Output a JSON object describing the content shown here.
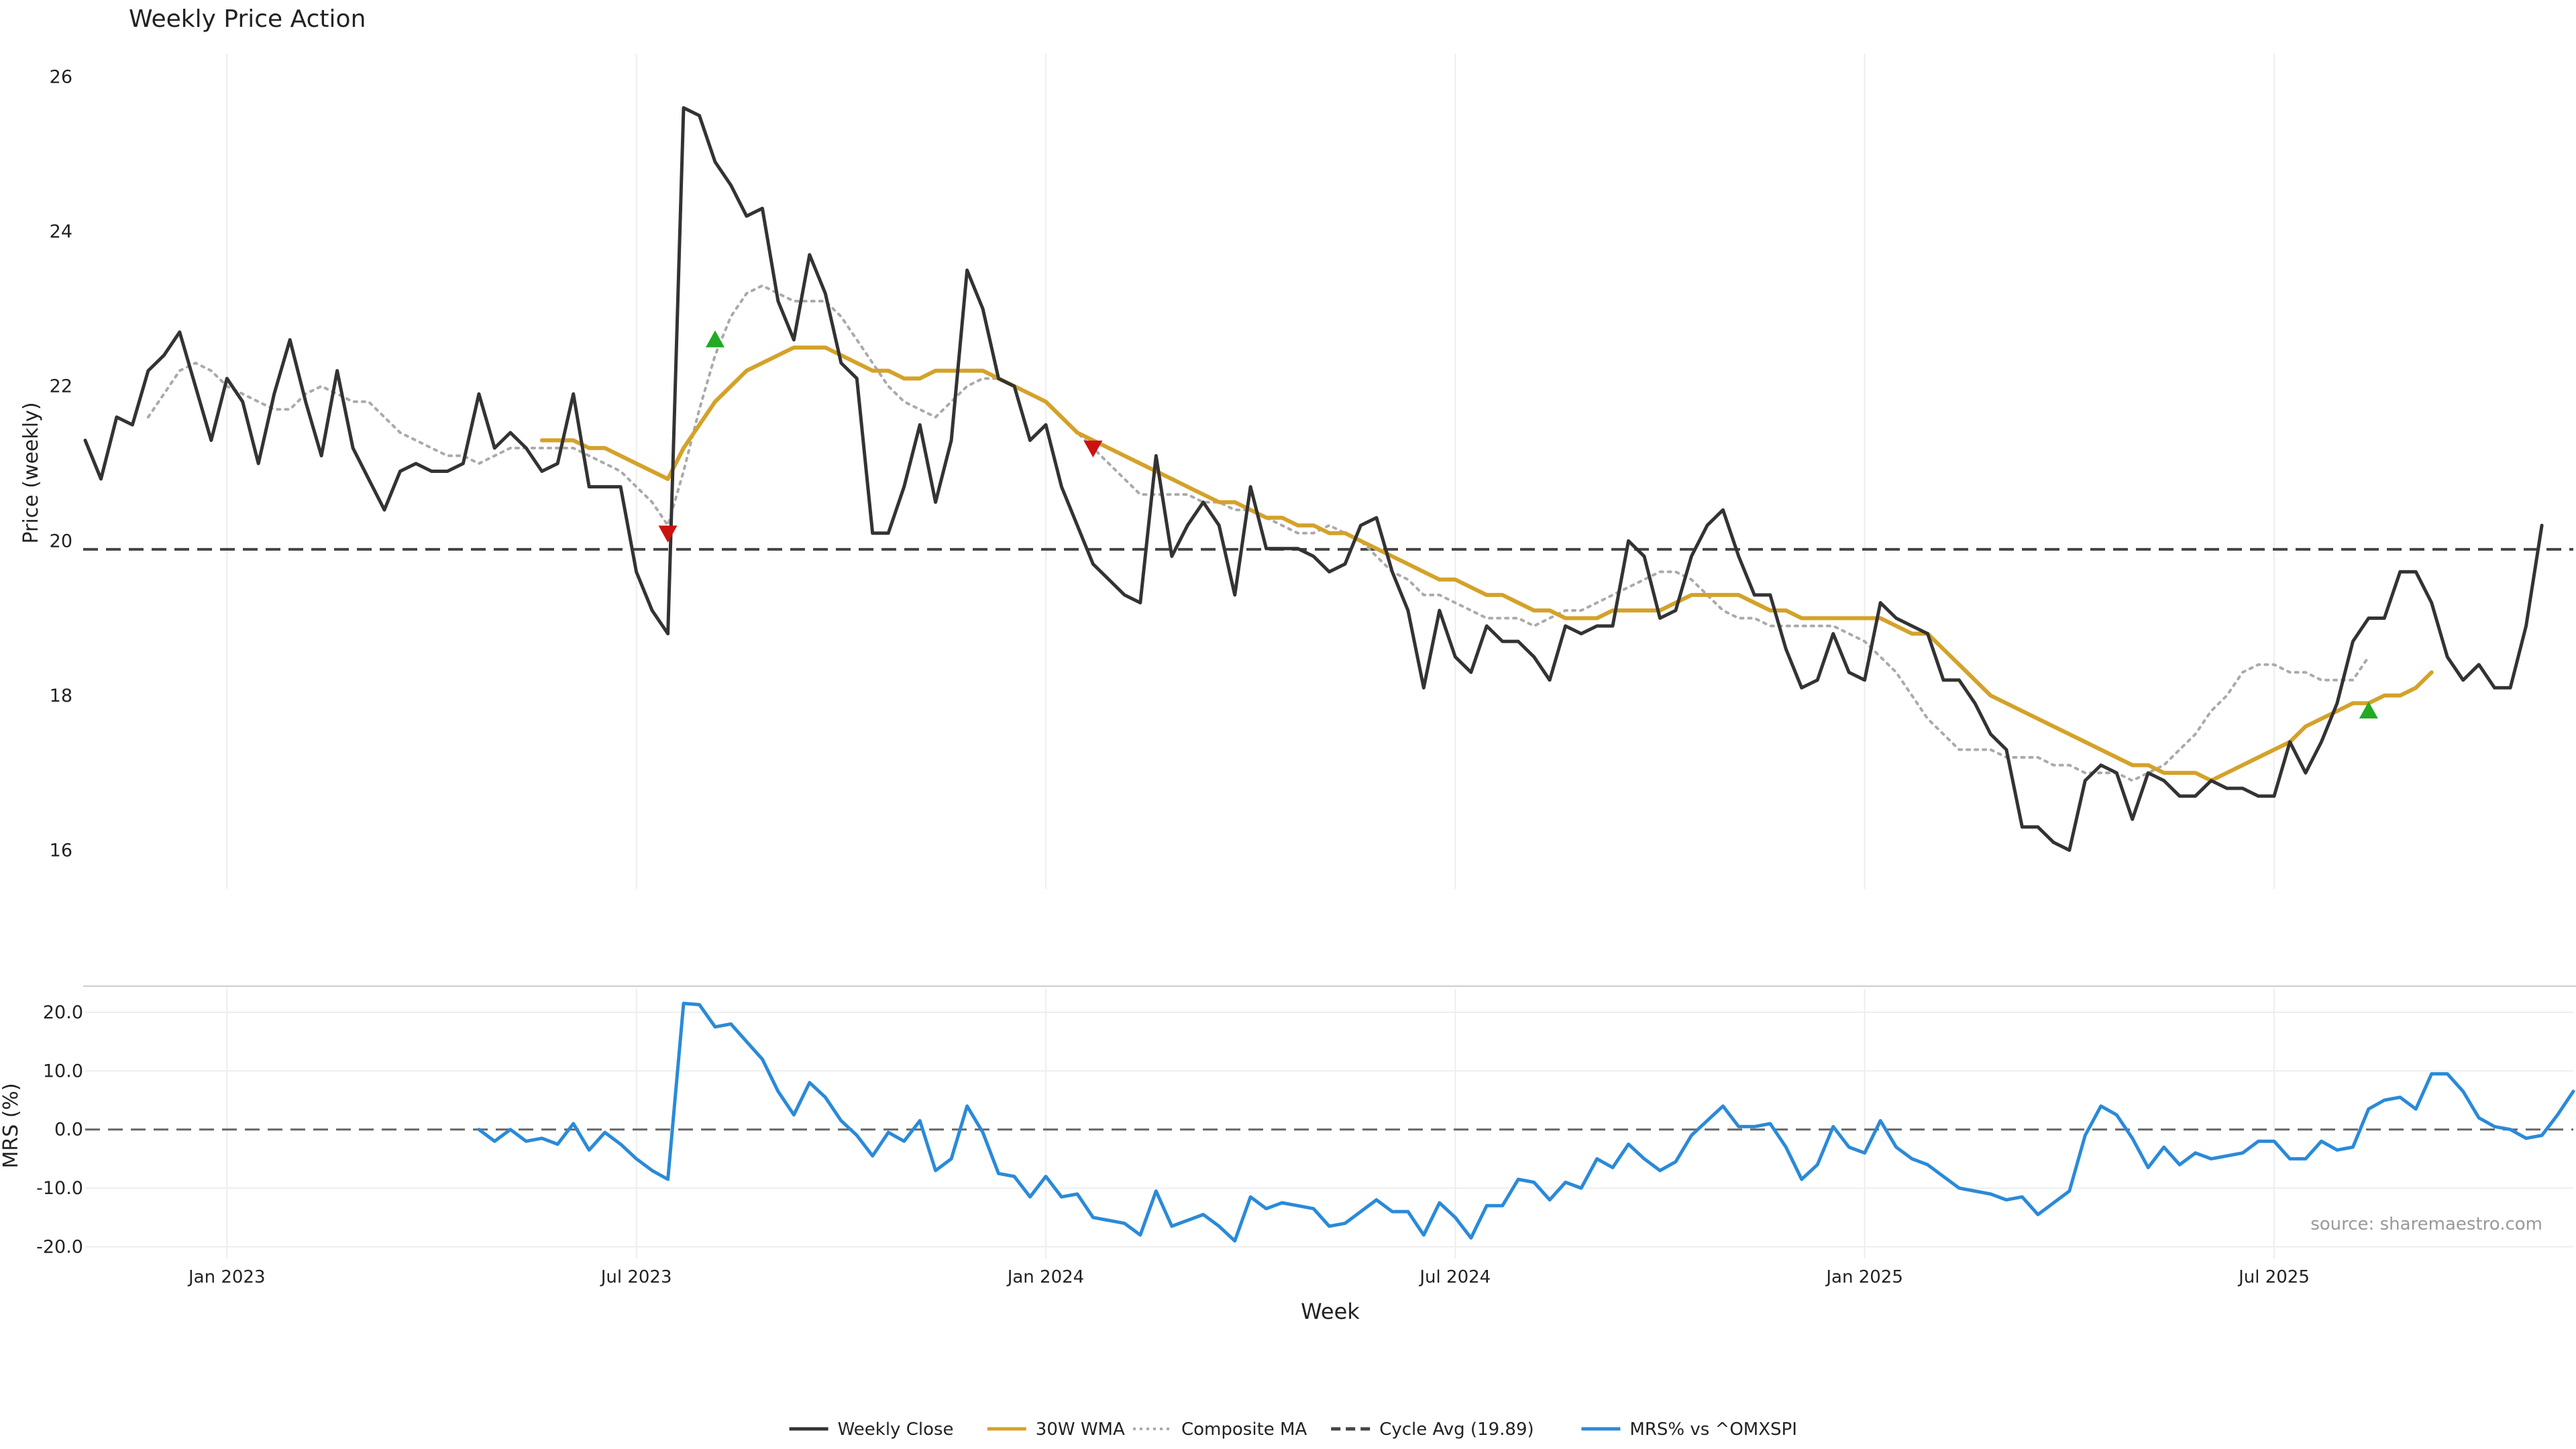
{
  "chart_data": [
    {
      "type": "line",
      "title": "Weekly Price Action",
      "xlabel": "",
      "ylabel": "Price (weekly)",
      "ylim": [
        15.5,
        26.3
      ],
      "yticks": [
        16,
        18,
        20,
        22,
        24,
        26
      ],
      "x_start_week": 0,
      "week_count": 159,
      "x_ticks": [
        {
          "label": "Jan 2023",
          "week": 9
        },
        {
          "label": "Jul 2023",
          "week": 35
        },
        {
          "label": "Jan 2024",
          "week": 61
        },
        {
          "label": "Jul 2024",
          "week": 87
        },
        {
          "label": "Jan 2025",
          "week": 113
        },
        {
          "label": "Jul 2025",
          "week": 139
        }
      ],
      "series": [
        {
          "name": "Weekly Close",
          "color": "#333333",
          "style": "solid",
          "start_week": 0,
          "values": [
            21.3,
            20.8,
            21.6,
            21.5,
            22.2,
            22.4,
            22.7,
            22.0,
            21.3,
            22.1,
            21.8,
            21.0,
            21.9,
            22.6,
            21.8,
            21.1,
            22.2,
            21.2,
            20.8,
            20.4,
            20.9,
            21.0,
            20.9,
            20.9,
            21.0,
            21.9,
            21.2,
            21.4,
            21.2,
            20.9,
            21.0,
            21.9,
            20.7,
            20.7,
            20.7,
            19.6,
            19.1,
            18.8,
            25.6,
            25.5,
            24.9,
            24.6,
            24.2,
            24.3,
            23.1,
            22.6,
            23.7,
            23.2,
            22.3,
            22.1,
            20.1,
            20.1,
            20.7,
            21.5,
            20.5,
            21.3,
            23.5,
            23.0,
            22.1,
            22.0,
            21.3,
            21.5,
            20.7,
            20.2,
            19.7,
            19.5,
            19.3,
            19.2,
            21.1,
            19.8,
            20.2,
            20.5,
            20.2,
            19.3,
            20.7,
            19.9,
            19.9,
            19.9,
            19.8,
            19.6,
            19.7,
            20.2,
            20.3,
            19.6,
            19.1,
            18.1,
            19.1,
            18.5,
            18.3,
            18.9,
            18.7,
            18.7,
            18.5,
            18.2,
            18.9,
            18.8,
            18.9,
            18.9,
            20.0,
            19.8,
            19.0,
            19.1,
            19.8,
            20.2,
            20.4,
            19.8,
            19.3,
            19.3,
            18.6,
            18.1,
            18.2,
            18.8,
            18.3,
            18.2,
            19.2,
            19.0,
            18.9,
            18.8,
            18.2,
            18.2,
            17.9,
            17.5,
            17.3,
            16.3,
            16.3,
            16.1,
            16.0,
            16.9,
            17.1,
            17.0,
            16.4,
            17.0,
            16.9,
            16.7,
            16.7,
            16.9,
            16.8,
            16.8,
            16.7,
            16.7,
            17.4,
            17.0,
            17.4,
            17.9,
            18.7,
            19.0,
            19.0,
            19.6,
            19.6,
            19.2,
            18.5,
            18.2,
            18.4,
            18.1,
            18.1,
            18.9,
            20.2
          ]
        },
        {
          "name": "30W WMA",
          "color": "#d4a22a",
          "style": "solid",
          "start_week": 29,
          "values": [
            21.3,
            21.3,
            21.3,
            21.2,
            21.2,
            21.1,
            21.0,
            20.9,
            20.8,
            21.2,
            21.5,
            21.8,
            22.0,
            22.2,
            22.3,
            22.4,
            22.5,
            22.5,
            22.5,
            22.4,
            22.3,
            22.2,
            22.2,
            22.1,
            22.1,
            22.2,
            22.2,
            22.2,
            22.2,
            22.1,
            22.0,
            21.9,
            21.8,
            21.6,
            21.4,
            21.3,
            21.2,
            21.1,
            21.0,
            20.9,
            20.8,
            20.7,
            20.6,
            20.5,
            20.5,
            20.4,
            20.3,
            20.3,
            20.2,
            20.2,
            20.1,
            20.1,
            20.0,
            19.9,
            19.8,
            19.7,
            19.6,
            19.5,
            19.5,
            19.4,
            19.3,
            19.3,
            19.2,
            19.1,
            19.1,
            19.0,
            19.0,
            19.0,
            19.1,
            19.1,
            19.1,
            19.1,
            19.2,
            19.3,
            19.3,
            19.3,
            19.3,
            19.2,
            19.1,
            19.1,
            19.0,
            19.0,
            19.0,
            19.0,
            19.0,
            19.0,
            18.9,
            18.8,
            18.8,
            18.6,
            18.4,
            18.2,
            18.0,
            17.9,
            17.8,
            17.7,
            17.6,
            17.5,
            17.4,
            17.3,
            17.2,
            17.1,
            17.1,
            17.0,
            17.0,
            17.0,
            16.9,
            17.0,
            17.1,
            17.2,
            17.3,
            17.4,
            17.6,
            17.7,
            17.8,
            17.9,
            17.9,
            18.0,
            18.0,
            18.1,
            18.3
          ]
        },
        {
          "name": "Composite MA",
          "color": "#aaaaaa",
          "style": "dotted",
          "start_week": 4,
          "values": [
            21.6,
            21.9,
            22.2,
            22.3,
            22.2,
            22.0,
            21.9,
            21.8,
            21.7,
            21.7,
            21.9,
            22.0,
            21.9,
            21.8,
            21.8,
            21.6,
            21.4,
            21.3,
            21.2,
            21.1,
            21.1,
            21.0,
            21.1,
            21.2,
            21.2,
            21.2,
            21.2,
            21.2,
            21.1,
            21.0,
            20.9,
            20.7,
            20.5,
            20.2,
            20.9,
            21.7,
            22.4,
            22.9,
            23.2,
            23.3,
            23.2,
            23.1,
            23.1,
            23.1,
            22.9,
            22.6,
            22.3,
            22.0,
            21.8,
            21.7,
            21.6,
            21.8,
            22.0,
            22.1,
            22.1,
            22.0,
            21.9,
            21.8,
            21.6,
            21.4,
            21.2,
            21.0,
            20.8,
            20.6,
            20.6,
            20.6,
            20.6,
            20.5,
            20.5,
            20.4,
            20.4,
            20.3,
            20.2,
            20.1,
            20.1,
            20.2,
            20.1,
            20.0,
            19.8,
            19.6,
            19.5,
            19.3,
            19.3,
            19.2,
            19.1,
            19.0,
            19.0,
            19.0,
            18.9,
            19.0,
            19.1,
            19.1,
            19.2,
            19.3,
            19.4,
            19.5,
            19.6,
            19.6,
            19.5,
            19.3,
            19.1,
            19.0,
            19.0,
            18.9,
            18.9,
            18.9,
            18.9,
            18.9,
            18.8,
            18.7,
            18.5,
            18.3,
            18.0,
            17.7,
            17.5,
            17.3,
            17.3,
            17.3,
            17.2,
            17.2,
            17.2,
            17.1,
            17.1,
            17.0,
            17.0,
            17.0,
            16.9,
            17.0,
            17.1,
            17.3,
            17.5,
            17.8,
            18.0,
            18.3,
            18.4,
            18.4,
            18.3,
            18.3,
            18.2,
            18.2,
            18.2,
            18.5
          ]
        }
      ],
      "reference_lines": [
        {
          "name": "Cycle Avg (19.89)",
          "value": 19.89,
          "color": "#444444",
          "style": "dashed"
        }
      ],
      "markers": [
        {
          "type": "sell",
          "week": 37,
          "value": 20.1,
          "color": "#cc1111"
        },
        {
          "type": "buy",
          "week": 40,
          "value": 22.6,
          "color": "#22aa22"
        },
        {
          "type": "sell",
          "week": 64,
          "value": 21.2,
          "color": "#cc1111"
        },
        {
          "type": "buy",
          "week": 145,
          "value": 17.8,
          "color": "#22aa22"
        }
      ]
    },
    {
      "type": "line",
      "title": "",
      "xlabel": "Week",
      "ylabel": "MRS (%)",
      "ylim": [
        -22,
        24
      ],
      "yticks": [
        -20,
        -10,
        0,
        10,
        20
      ],
      "ytick_labels": [
        "-20.0",
        "-10.0",
        "0.0",
        "10.0",
        "20.0"
      ],
      "annotation": "source: sharemaestro.com",
      "series": [
        {
          "name": "MRS% vs ^OMXSPI",
          "color": "#2a8ad8",
          "style": "solid",
          "start_week": 25,
          "values": [
            0.0,
            -2.0,
            0.0,
            -2.0,
            -1.5,
            -2.5,
            1.0,
            -3.5,
            -0.5,
            -2.5,
            -5.0,
            -7.0,
            -8.5,
            21.5,
            21.3,
            17.5,
            18.0,
            15.0,
            12.0,
            6.5,
            2.5,
            8.0,
            5.5,
            1.5,
            -1.0,
            -4.5,
            -0.5,
            -2.0,
            1.5,
            -7.0,
            -5.0,
            4.0,
            -0.5,
            -7.5,
            -8.0,
            -11.5,
            -8.0,
            -11.5,
            -11.0,
            -15.0,
            -15.5,
            -16.0,
            -18.0,
            -10.5,
            -16.5,
            -15.5,
            -14.5,
            -16.5,
            -19.0,
            -11.5,
            -13.5,
            -12.5,
            -13.0,
            -13.5,
            -16.5,
            -16.0,
            -14.0,
            -12.0,
            -14.0,
            -14.0,
            -18.0,
            -12.5,
            -15.0,
            -18.5,
            -13.0,
            -13.0,
            -8.5,
            -9.0,
            -12.0,
            -9.0,
            -10.0,
            -5.0,
            -6.5,
            -2.5,
            -5.0,
            -7.0,
            -5.5,
            -1.0,
            1.5,
            4.0,
            0.5,
            0.5,
            1.0,
            -3.0,
            -8.5,
            -6.0,
            0.5,
            -3.0,
            -4.0,
            1.5,
            -3.0,
            -5.0,
            -6.0,
            -8.0,
            -10.0,
            -10.5,
            -11.0,
            -12.0,
            -11.5,
            -14.5,
            -12.5,
            -10.5,
            -1.0,
            4.0,
            2.5,
            -1.5,
            -6.5,
            -3.0,
            -6.0,
            -4.0,
            -5.0,
            -4.5,
            -4.0,
            -2.0,
            -2.0,
            -5.0,
            -5.0,
            -2.0,
            -3.5,
            -3.0,
            3.5,
            5.0,
            5.5,
            3.5,
            9.5,
            9.5,
            6.5,
            2.0,
            0.5,
            0.0,
            -1.5,
            -1.0,
            2.5,
            6.5
          ]
        }
      ],
      "reference_lines": [
        {
          "name": "zero",
          "value": 0,
          "color": "#666666",
          "style": "dashed"
        }
      ]
    }
  ],
  "x_ticks_labels": [
    "Jan 2023",
    "Jul 2023",
    "Jan 2024",
    "Jul 2024",
    "Jan 2025",
    "Jul 2025"
  ],
  "legend": {
    "items": [
      {
        "label": "Weekly Close",
        "color": "#333333",
        "style": "solid"
      },
      {
        "label": "30W WMA",
        "color": "#d4a22a",
        "style": "solid"
      },
      {
        "label": "Composite MA",
        "color": "#aaaaaa",
        "style": "dotted"
      },
      {
        "label": "Cycle Avg (19.89)",
        "color": "#444444",
        "style": "dashed"
      },
      {
        "label": "MRS% vs ^OMXSPI",
        "color": "#2a8ad8",
        "style": "solid"
      }
    ]
  }
}
